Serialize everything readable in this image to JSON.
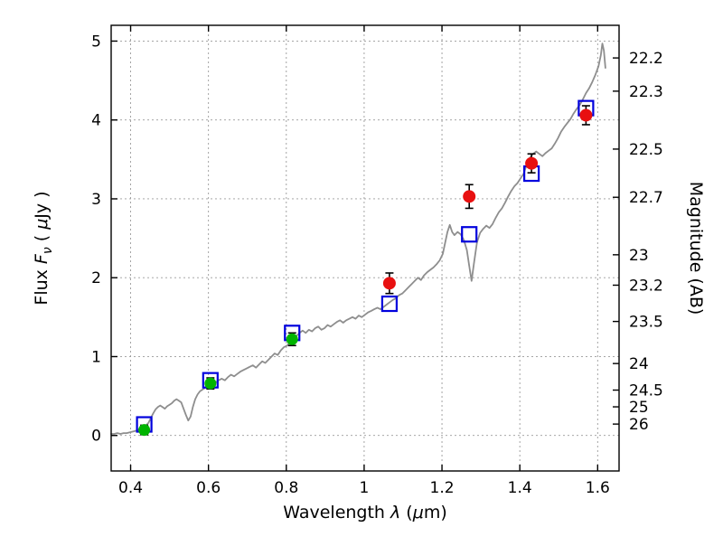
{
  "figure": {
    "background": "#ffffff"
  },
  "chart_data": {
    "type": "line+scatter",
    "title": "",
    "xlabel_parts": [
      {
        "t": "Wavelength  ",
        "i": false
      },
      {
        "t": "λ",
        "i": true
      },
      {
        "t": " (",
        "i": false
      },
      {
        "t": "μ",
        "i": true
      },
      {
        "t": "m)",
        "i": false
      }
    ],
    "ylabel_left_parts": [
      {
        "t": "Flux  ",
        "i": false
      },
      {
        "t": "F",
        "i": true
      },
      {
        "t": "ν",
        "i": true,
        "sub": true
      },
      {
        "t": "  ( ",
        "i": false
      },
      {
        "t": "μ",
        "i": true
      },
      {
        "t": "Jy )",
        "i": false
      }
    ],
    "ylabel_right": "Magnitude (AB)",
    "xlim": [
      0.35,
      1.655
    ],
    "ylim": [
      -0.45,
      5.2
    ],
    "grid": {
      "show": true,
      "color": "#9a9a9a",
      "style": "dotted"
    },
    "x_ticks": {
      "values": [
        0.4,
        0.6,
        0.8,
        1.0,
        1.2,
        1.4,
        1.6
      ],
      "labels": [
        "0.4",
        "0.6",
        "0.8",
        "1",
        "1.2",
        "1.4",
        "1.6"
      ]
    },
    "y_ticks_left": {
      "values": [
        0,
        1,
        2,
        3,
        4,
        5
      ],
      "labels": [
        "0",
        "1",
        "2",
        "3",
        "4",
        "5"
      ]
    },
    "y_ticks_right": {
      "zeropoint_ab": 23.9,
      "magnitudes": [
        22.2,
        22.3,
        22.5,
        22.7,
        23,
        23.2,
        23.5,
        24,
        24.5,
        25,
        26
      ],
      "labels": [
        "22.2",
        "22.3",
        "22.5",
        "22.7",
        "23",
        "23.2",
        "23.5",
        "24",
        "24.5",
        "25",
        "26"
      ]
    },
    "series": [
      {
        "name": "galaxy-spectrum",
        "type": "line",
        "color": "#8e8e8e",
        "width": 1.8,
        "points": [
          [
            0.35,
            0.02
          ],
          [
            0.358,
            0.02
          ],
          [
            0.366,
            0.03
          ],
          [
            0.374,
            0.02
          ],
          [
            0.382,
            0.03
          ],
          [
            0.39,
            0.03
          ],
          [
            0.398,
            0.04
          ],
          [
            0.406,
            0.05
          ],
          [
            0.414,
            0.06
          ],
          [
            0.422,
            0.08
          ],
          [
            0.43,
            0.1
          ],
          [
            0.438,
            0.12
          ],
          [
            0.446,
            0.16
          ],
          [
            0.452,
            0.22
          ],
          [
            0.458,
            0.28
          ],
          [
            0.464,
            0.33
          ],
          [
            0.47,
            0.36
          ],
          [
            0.476,
            0.38
          ],
          [
            0.482,
            0.36
          ],
          [
            0.488,
            0.34
          ],
          [
            0.494,
            0.37
          ],
          [
            0.5,
            0.39
          ],
          [
            0.506,
            0.41
          ],
          [
            0.512,
            0.44
          ],
          [
            0.518,
            0.46
          ],
          [
            0.524,
            0.44
          ],
          [
            0.53,
            0.42
          ],
          [
            0.536,
            0.34
          ],
          [
            0.542,
            0.26
          ],
          [
            0.548,
            0.19
          ],
          [
            0.554,
            0.24
          ],
          [
            0.56,
            0.36
          ],
          [
            0.566,
            0.46
          ],
          [
            0.572,
            0.52
          ],
          [
            0.578,
            0.56
          ],
          [
            0.584,
            0.58
          ],
          [
            0.59,
            0.6
          ],
          [
            0.596,
            0.62
          ],
          [
            0.602,
            0.63
          ],
          [
            0.61,
            0.65
          ],
          [
            0.618,
            0.67
          ],
          [
            0.626,
            0.7
          ],
          [
            0.634,
            0.72
          ],
          [
            0.642,
            0.7
          ],
          [
            0.65,
            0.74
          ],
          [
            0.658,
            0.77
          ],
          [
            0.666,
            0.75
          ],
          [
            0.674,
            0.78
          ],
          [
            0.682,
            0.81
          ],
          [
            0.69,
            0.83
          ],
          [
            0.698,
            0.85
          ],
          [
            0.706,
            0.87
          ],
          [
            0.714,
            0.89
          ],
          [
            0.722,
            0.86
          ],
          [
            0.73,
            0.9
          ],
          [
            0.738,
            0.94
          ],
          [
            0.746,
            0.92
          ],
          [
            0.754,
            0.96
          ],
          [
            0.762,
            1.0
          ],
          [
            0.77,
            1.04
          ],
          [
            0.778,
            1.02
          ],
          [
            0.786,
            1.08
          ],
          [
            0.794,
            1.12
          ],
          [
            0.802,
            1.14
          ],
          [
            0.81,
            1.18
          ],
          [
            0.818,
            1.21
          ],
          [
            0.826,
            1.26
          ],
          [
            0.834,
            1.3
          ],
          [
            0.842,
            1.33
          ],
          [
            0.85,
            1.3
          ],
          [
            0.858,
            1.34
          ],
          [
            0.866,
            1.32
          ],
          [
            0.874,
            1.36
          ],
          [
            0.882,
            1.38
          ],
          [
            0.89,
            1.34
          ],
          [
            0.898,
            1.36
          ],
          [
            0.906,
            1.4
          ],
          [
            0.914,
            1.38
          ],
          [
            0.922,
            1.41
          ],
          [
            0.93,
            1.44
          ],
          [
            0.938,
            1.46
          ],
          [
            0.946,
            1.43
          ],
          [
            0.954,
            1.46
          ],
          [
            0.962,
            1.48
          ],
          [
            0.97,
            1.5
          ],
          [
            0.978,
            1.48
          ],
          [
            0.986,
            1.52
          ],
          [
            0.994,
            1.5
          ],
          [
            1.002,
            1.53
          ],
          [
            1.01,
            1.56
          ],
          [
            1.018,
            1.58
          ],
          [
            1.026,
            1.6
          ],
          [
            1.034,
            1.62
          ],
          [
            1.042,
            1.6
          ],
          [
            1.05,
            1.63
          ],
          [
            1.058,
            1.66
          ],
          [
            1.066,
            1.69
          ],
          [
            1.074,
            1.72
          ],
          [
            1.082,
            1.74
          ],
          [
            1.09,
            1.78
          ],
          [
            1.098,
            1.8
          ],
          [
            1.106,
            1.84
          ],
          [
            1.114,
            1.88
          ],
          [
            1.122,
            1.92
          ],
          [
            1.13,
            1.96
          ],
          [
            1.138,
            2.0
          ],
          [
            1.146,
            1.97
          ],
          [
            1.154,
            2.03
          ],
          [
            1.162,
            2.07
          ],
          [
            1.17,
            2.1
          ],
          [
            1.178,
            2.13
          ],
          [
            1.186,
            2.17
          ],
          [
            1.194,
            2.22
          ],
          [
            1.202,
            2.3
          ],
          [
            1.208,
            2.44
          ],
          [
            1.214,
            2.58
          ],
          [
            1.22,
            2.67
          ],
          [
            1.226,
            2.58
          ],
          [
            1.232,
            2.54
          ],
          [
            1.24,
            2.58
          ],
          [
            1.248,
            2.55
          ],
          [
            1.256,
            2.48
          ],
          [
            1.264,
            2.35
          ],
          [
            1.27,
            2.15
          ],
          [
            1.276,
            1.96
          ],
          [
            1.282,
            2.18
          ],
          [
            1.29,
            2.45
          ],
          [
            1.298,
            2.57
          ],
          [
            1.306,
            2.62
          ],
          [
            1.314,
            2.66
          ],
          [
            1.322,
            2.63
          ],
          [
            1.33,
            2.68
          ],
          [
            1.338,
            2.76
          ],
          [
            1.346,
            2.83
          ],
          [
            1.354,
            2.88
          ],
          [
            1.362,
            2.95
          ],
          [
            1.37,
            3.03
          ],
          [
            1.378,
            3.1
          ],
          [
            1.386,
            3.16
          ],
          [
            1.394,
            3.2
          ],
          [
            1.402,
            3.26
          ],
          [
            1.41,
            3.32
          ],
          [
            1.418,
            3.44
          ],
          [
            1.426,
            3.52
          ],
          [
            1.434,
            3.57
          ],
          [
            1.442,
            3.6
          ],
          [
            1.45,
            3.57
          ],
          [
            1.458,
            3.54
          ],
          [
            1.466,
            3.58
          ],
          [
            1.474,
            3.61
          ],
          [
            1.482,
            3.64
          ],
          [
            1.49,
            3.7
          ],
          [
            1.498,
            3.77
          ],
          [
            1.506,
            3.85
          ],
          [
            1.514,
            3.91
          ],
          [
            1.522,
            3.96
          ],
          [
            1.53,
            4.01
          ],
          [
            1.538,
            4.08
          ],
          [
            1.546,
            4.14
          ],
          [
            1.554,
            4.19
          ],
          [
            1.562,
            4.26
          ],
          [
            1.57,
            4.34
          ],
          [
            1.578,
            4.4
          ],
          [
            1.586,
            4.48
          ],
          [
            1.594,
            4.57
          ],
          [
            1.602,
            4.68
          ],
          [
            1.608,
            4.82
          ],
          [
            1.612,
            4.97
          ],
          [
            1.616,
            4.88
          ],
          [
            1.62,
            4.66
          ]
        ]
      },
      {
        "name": "model-photometry-squares",
        "type": "scatter",
        "marker": "open-square",
        "color": "#0000dd",
        "size": 16,
        "stroke_width": 2.2,
        "x": [
          0.435,
          0.605,
          0.815,
          1.065,
          1.27,
          1.43,
          1.57
        ],
        "y": [
          0.14,
          0.7,
          1.3,
          1.67,
          2.55,
          3.32,
          4.15
        ]
      },
      {
        "name": "observed-optical-green",
        "type": "scatter",
        "marker": "circle",
        "color": "#00b400",
        "size": 13,
        "errorbar_color": "#000000",
        "x": [
          0.435,
          0.605,
          0.815
        ],
        "y": [
          0.07,
          0.66,
          1.22
        ],
        "yerr": [
          0.06,
          0.07,
          0.08
        ]
      },
      {
        "name": "observed-infrared-red",
        "type": "scatter",
        "marker": "circle",
        "color": "#e81010",
        "size": 14,
        "errorbar_color": "#000000",
        "x": [
          1.065,
          1.27,
          1.43,
          1.57
        ],
        "y": [
          1.93,
          3.03,
          3.45,
          4.06
        ],
        "yerr": [
          0.13,
          0.15,
          0.12,
          0.12
        ]
      }
    ]
  }
}
